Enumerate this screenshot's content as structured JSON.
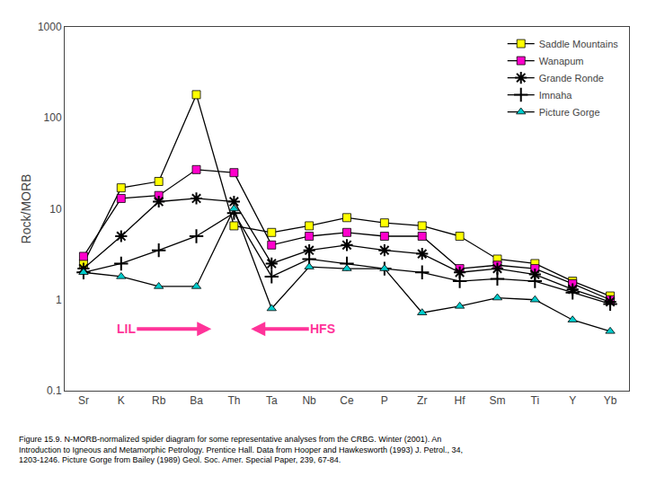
{
  "chart_data": {
    "type": "line",
    "categories": [
      "Sr",
      "K",
      "Rb",
      "Ba",
      "Th",
      "Ta",
      "Nb",
      "Ce",
      "P",
      "Zr",
      "Hf",
      "Sm",
      "Ti",
      "Y",
      "Yb"
    ],
    "ylabel": "Rock/MORB",
    "log": "y",
    "ylim": [
      0.1,
      1000
    ],
    "yticks": [
      0.1,
      1,
      10,
      100,
      1000
    ],
    "grid": false,
    "legend": "top right",
    "series": [
      {
        "name": "Saddle Mountains",
        "color": "#FFFF00",
        "marker": "square",
        "values": [
          2.5,
          17,
          20,
          180,
          6.5,
          5.5,
          6.5,
          8.0,
          7.0,
          6.5,
          5.0,
          2.8,
          2.5,
          1.6,
          1.1
        ]
      },
      {
        "name": "Wanapum",
        "color": "#FF00CC",
        "marker": "square",
        "values": [
          3.0,
          13,
          14,
          27,
          25.0,
          4.0,
          5.0,
          5.5,
          5.0,
          5.0,
          2.2,
          2.4,
          2.2,
          1.5,
          1.0
        ]
      },
      {
        "name": "Grande Ronde",
        "color": "#000000",
        "marker": "asterisk",
        "values": [
          2.2,
          5,
          12,
          13,
          12.0,
          2.5,
          3.5,
          4.0,
          3.5,
          3.2,
          2.0,
          2.2,
          1.9,
          1.3,
          0.95
        ]
      },
      {
        "name": "Imnaha",
        "color": "#000000",
        "marker": "plus",
        "values": [
          2.0,
          2.5,
          3.5,
          5,
          9.0,
          1.8,
          2.8,
          2.5,
          2.2,
          2.0,
          1.6,
          1.7,
          1.6,
          1.2,
          0.9
        ]
      },
      {
        "name": "Picture Gorge",
        "color": "#00CCCC",
        "marker": "triangle",
        "values": [
          2.0,
          1.8,
          1.4,
          1.4,
          10.0,
          0.8,
          2.3,
          2.2,
          2.2,
          0.72,
          0.85,
          1.05,
          1.0,
          0.6,
          0.45
        ]
      }
    ],
    "annotations": [
      {
        "text": "LIL",
        "color": "#FF3399"
      },
      {
        "text": "HFS",
        "color": "#FF3399"
      },
      {
        "text": "Figure 15.9. N-MORB-normalized spider diagram for some representative analyses from the CRBG. Winter (2001). An\nIntroduction to Igneous and Metamorphic Petrology. Prentice Hall. Data from Hooper and Hawkesworth (1993) J. Petrol., 34,\n1203-1246. Picture Gorge from Bailey (1989) Geol. Soc. Amer. Special Paper, 239, 67-84."
      }
    ]
  }
}
